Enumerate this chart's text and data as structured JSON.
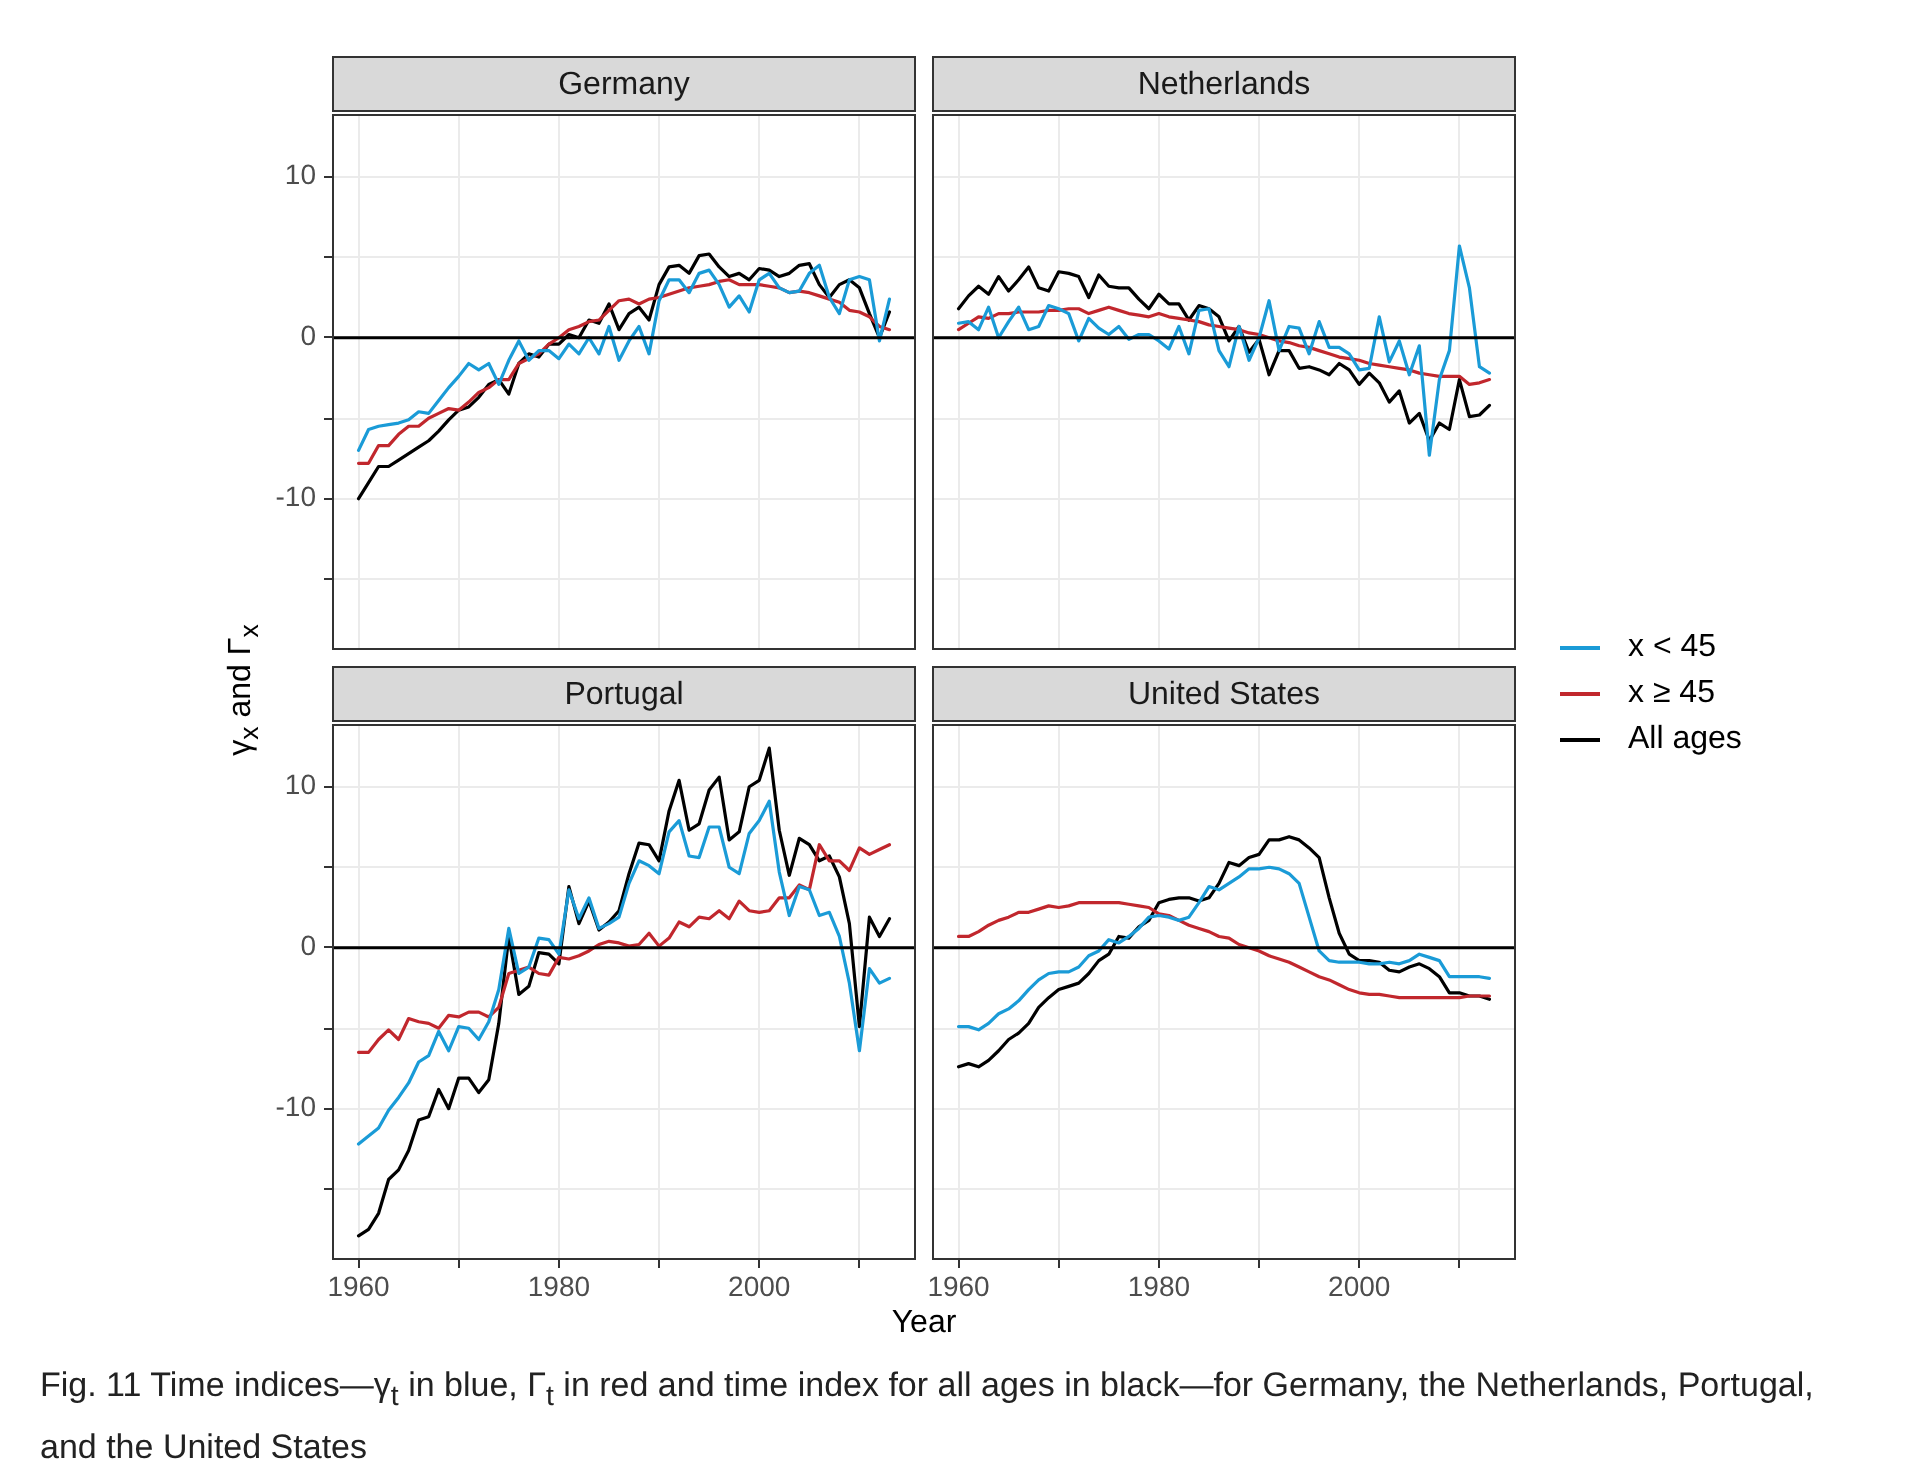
{
  "chart_data": [
    {
      "type": "line",
      "title": "Germany",
      "legend": "right",
      "ylabel": "γ$_{x}$ and Γ$_{x}$",
      "xlabel": "Year",
      "annotations": [
        "Fig. 11  Time indices—γ$_{t}$ in blue, Γ$_{t}$ in red and time index for all ages in black—for Germany, the Netherlands, Portugal, and the United States"
      ],
      "tick_labels": "y",
      "grid": true,
      "marker": "none",
      "xlim": [
        1957.35,
        2015.65
      ],
      "ylim": [
        -19.4,
        13.9
      ],
      "xticks": [
        1960,
        {
          "value": 1970,
          "label": null
        },
        1980,
        {
          "value": 1990,
          "label": null
        },
        2000,
        {
          "value": 2010,
          "label": null
        }
      ],
      "yticks": [
        {
          "value": -15,
          "label": null
        },
        -10,
        {
          "value": -5,
          "label": null
        },
        0,
        {
          "value": 5,
          "label": null
        },
        10
      ],
      "ref_lines": [
        {
          "axis": "y",
          "value": 0
        }
      ],
      "x": [
        1960,
        1961,
        1962,
        1963,
        1964,
        1965,
        1966,
        1967,
        1968,
        1969,
        1970,
        1971,
        1972,
        1973,
        1974,
        1975,
        1976,
        1977,
        1978,
        1979,
        1980,
        1981,
        1982,
        1983,
        1984,
        1985,
        1986,
        1987,
        1988,
        1989,
        1990,
        1991,
        1992,
        1993,
        1994,
        1995,
        1996,
        1997,
        1998,
        1999,
        2000,
        2001,
        2002,
        2003,
        2004,
        2005,
        2006,
        2007,
        2008,
        2009,
        2010,
        2011,
        2012,
        2013
      ],
      "series": [
        {
          "name": "x < 45",
          "color": "#1a9bd7",
          "values": [
            -7.0,
            -5.7,
            -5.5,
            -5.4,
            -5.3,
            -5.1,
            -4.6,
            -4.7,
            -3.9,
            -3.1,
            -2.4,
            -1.6,
            -2.0,
            -1.6,
            -2.9,
            -1.4,
            -0.2,
            -1.4,
            -0.8,
            -0.8,
            -1.3,
            -0.4,
            -1.0,
            0,
            -1.0,
            0.7,
            -1.4,
            -0.2,
            0.7,
            -1.0,
            2.3,
            3.6,
            3.6,
            2.8,
            4.0,
            4.2,
            3.3,
            1.9,
            2.6,
            1.6,
            3.6,
            4.0,
            3.1,
            2.8,
            2.9,
            4.0,
            4.5,
            2.5,
            1.5,
            3.6,
            3.8,
            3.6,
            -0.2,
            2.4
          ]
        },
        {
          "name": "x ≥ 45",
          "color": "#c1272d",
          "values": [
            -7.8,
            -7.8,
            -6.7,
            -6.7,
            -6.0,
            -5.5,
            -5.5,
            -5.0,
            -4.7,
            -4.4,
            -4.5,
            -4.0,
            -3.4,
            -3.1,
            -2.6,
            -2.6,
            -1.6,
            -1.3,
            -1.0,
            -0.4,
            0,
            0.5,
            0.7,
            1.0,
            1.1,
            1.7,
            2.3,
            2.4,
            2.1,
            2.4,
            2.5,
            2.7,
            2.9,
            3.1,
            3.2,
            3.3,
            3.5,
            3.6,
            3.3,
            3.3,
            3.3,
            3.2,
            3.1,
            2.8,
            2.9,
            2.8,
            2.6,
            2.4,
            2.2,
            1.7,
            1.6,
            1.3,
            0.7,
            0.5
          ]
        },
        {
          "name": "All ages",
          "color": "#000000",
          "values": [
            -10,
            -9.0,
            -8.0,
            -8.0,
            -7.6,
            -7.2,
            -6.8,
            -6.4,
            -5.8,
            -5.1,
            -4.5,
            -4.3,
            -3.7,
            -2.9,
            -2.6,
            -3.5,
            -1.6,
            -1.0,
            -1.2,
            -0.4,
            -0.4,
            0.2,
            0,
            1.1,
            0.9,
            2.1,
            0.5,
            1.5,
            1.9,
            1.1,
            3.3,
            4.4,
            4.5,
            4.0,
            5.1,
            5.2,
            4.4,
            3.8,
            4.0,
            3.6,
            4.3,
            4.2,
            3.8,
            4.0,
            4.5,
            4.6,
            3.3,
            2.5,
            3.3,
            3.6,
            3.1,
            1.5,
            0,
            1.6
          ]
        }
      ]
    },
    {
      "type": "line",
      "title": "Netherlands",
      "tick_labels": false,
      "grid": true,
      "marker": "none",
      "xlim": [
        1957.35,
        2015.65
      ],
      "ylim": [
        -19.4,
        13.9
      ],
      "xticks": [
        1960,
        {
          "value": 1970,
          "label": null
        },
        1980,
        {
          "value": 1990,
          "label": null
        },
        2000,
        {
          "value": 2010,
          "label": null
        }
      ],
      "yticks": [
        {
          "value": -15,
          "label": null
        },
        -10,
        {
          "value": -5,
          "label": null
        },
        0,
        {
          "value": 5,
          "label": null
        },
        10
      ],
      "ref_lines": [
        {
          "axis": "y",
          "value": 0
        }
      ],
      "x": [
        1960,
        1961,
        1962,
        1963,
        1964,
        1965,
        1966,
        1967,
        1968,
        1969,
        1970,
        1971,
        1972,
        1973,
        1974,
        1975,
        1976,
        1977,
        1978,
        1979,
        1980,
        1981,
        1982,
        1983,
        1984,
        1985,
        1986,
        1987,
        1988,
        1989,
        1990,
        1991,
        1992,
        1993,
        1994,
        1995,
        1996,
        1997,
        1998,
        1999,
        2000,
        2001,
        2002,
        2003,
        2004,
        2005,
        2006,
        2007,
        2008,
        2009,
        2010,
        2011,
        2012,
        2013
      ],
      "series": [
        {
          "color": "#1a9bd7",
          "values": [
            0.9,
            1.0,
            0.5,
            1.9,
            0,
            1.0,
            1.9,
            0.5,
            0.7,
            2.0,
            1.8,
            1.5,
            -0.2,
            1.2,
            0.6,
            0.2,
            0.7,
            -0.1,
            0.2,
            0.2,
            -0.2,
            -0.7,
            0.7,
            -1.0,
            1.7,
            1.8,
            -0.8,
            -1.8,
            0.7,
            -1.4,
            0,
            2.3,
            -0.8,
            0.7,
            0.6,
            -1.0,
            1.0,
            -0.6,
            -0.6,
            -1.0,
            -2.0,
            -1.9,
            1.3,
            -1.5,
            -0.2,
            -2.3,
            -0.5,
            -7.3,
            -2.6,
            -0.8,
            5.7,
            3.1,
            -1.8,
            -2.2
          ]
        },
        {
          "color": "#c1272d",
          "values": [
            0.5,
            0.9,
            1.3,
            1.2,
            1.5,
            1.5,
            1.6,
            1.6,
            1.6,
            1.7,
            1.7,
            1.8,
            1.8,
            1.5,
            1.7,
            1.9,
            1.7,
            1.5,
            1.4,
            1.3,
            1.5,
            1.3,
            1.2,
            1.1,
            1.0,
            0.8,
            0.7,
            0.6,
            0.5,
            0.3,
            0.2,
            0,
            -0.2,
            -0.3,
            -0.5,
            -0.6,
            -0.8,
            -1.0,
            -1.2,
            -1.3,
            -1.4,
            -1.6,
            -1.7,
            -1.8,
            -1.9,
            -2.0,
            -2.2,
            -2.3,
            -2.4,
            -2.4,
            -2.4,
            -2.9,
            -2.8,
            -2.6
          ]
        },
        {
          "color": "#000000",
          "values": [
            1.8,
            2.6,
            3.2,
            2.7,
            3.8,
            2.9,
            3.6,
            4.4,
            3.1,
            2.9,
            4.1,
            4.0,
            3.8,
            2.5,
            3.9,
            3.2,
            3.1,
            3.1,
            2.4,
            1.8,
            2.7,
            2.1,
            2.1,
            1.1,
            2.0,
            1.8,
            1.3,
            -0.2,
            0.7,
            -0.9,
            -0.1,
            -2.3,
            -0.8,
            -0.8,
            -1.9,
            -1.8,
            -2.0,
            -2.3,
            -1.6,
            -2.0,
            -2.9,
            -2.2,
            -2.8,
            -4.0,
            -3.3,
            -5.3,
            -4.7,
            -6.4,
            -5.3,
            -5.7,
            -2.6,
            -4.9,
            -4.8,
            -4.2
          ]
        }
      ]
    },
    {
      "type": "line",
      "title": "Portugal",
      "grid": true,
      "marker": "none",
      "xlim": [
        1957.35,
        2015.65
      ],
      "ylim": [
        -19.4,
        13.9
      ],
      "xticks": [
        1960,
        {
          "value": 1970,
          "label": null
        },
        1980,
        {
          "value": 1990,
          "label": null
        },
        2000,
        {
          "value": 2010,
          "label": null
        }
      ],
      "yticks": [
        {
          "value": -15,
          "label": null
        },
        -10,
        {
          "value": -5,
          "label": null
        },
        0,
        {
          "value": 5,
          "label": null
        },
        10
      ],
      "ref_lines": [
        {
          "axis": "y",
          "value": 0
        }
      ],
      "x": [
        1960,
        1961,
        1962,
        1963,
        1964,
        1965,
        1966,
        1967,
        1968,
        1969,
        1970,
        1971,
        1972,
        1973,
        1974,
        1975,
        1976,
        1977,
        1978,
        1979,
        1980,
        1981,
        1982,
        1983,
        1984,
        1985,
        1986,
        1987,
        1988,
        1989,
        1990,
        1991,
        1992,
        1993,
        1994,
        1995,
        1996,
        1997,
        1998,
        1999,
        2000,
        2001,
        2002,
        2003,
        2004,
        2005,
        2006,
        2007,
        2008,
        2009,
        2010,
        2011,
        2012,
        2013
      ],
      "series": [
        {
          "color": "#1a9bd7",
          "values": [
            -12.2,
            -11.7,
            -11.2,
            -10.1,
            -9.3,
            -8.4,
            -7.1,
            -6.7,
            -5.2,
            -6.4,
            -4.9,
            -5.0,
            -5.7,
            -4.6,
            -2.6,
            1.2,
            -1.6,
            -1.2,
            0.6,
            0.5,
            -0.4,
            3.6,
            1.8,
            3.1,
            1.2,
            1.5,
            1.9,
            4.0,
            5.4,
            5.1,
            4.6,
            7.2,
            7.9,
            5.7,
            5.6,
            7.5,
            7.5,
            5.0,
            4.6,
            7.1,
            7.9,
            9.1,
            4.7,
            2.0,
            3.8,
            3.6,
            2.0,
            2.2,
            0.7,
            -2.2,
            -6.4,
            -1.3,
            -2.2,
            -1.9
          ]
        },
        {
          "color": "#c1272d",
          "values": [
            -6.5,
            -6.5,
            -5.7,
            -5.1,
            -5.7,
            -4.4,
            -4.6,
            -4.7,
            -5.0,
            -4.2,
            -4.3,
            -4.0,
            -4.0,
            -4.3,
            -3.7,
            -1.6,
            -1.4,
            -1.2,
            -1.6,
            -1.7,
            -0.6,
            -0.7,
            -0.5,
            -0.2,
            0.2,
            0.4,
            0.3,
            0.1,
            0.2,
            0.9,
            0.1,
            0.6,
            1.6,
            1.3,
            1.9,
            1.8,
            2.3,
            1.8,
            2.9,
            2.3,
            2.2,
            2.3,
            3.1,
            3.1,
            3.9,
            3.6,
            6.4,
            5.4,
            5.4,
            4.8,
            6.2,
            5.8,
            6.1,
            6.4
          ]
        },
        {
          "color": "#000000",
          "values": [
            -17.9,
            -17.5,
            -16.5,
            -14.4,
            -13.8,
            -12.6,
            -10.7,
            -10.5,
            -8.8,
            -10.0,
            -8.1,
            -8.1,
            -9.0,
            -8.2,
            -4.7,
            0.7,
            -2.9,
            -2.4,
            -0.3,
            -0.4,
            -1.0,
            3.8,
            1.5,
            2.9,
            1.1,
            1.6,
            2.3,
            4.6,
            6.5,
            6.4,
            5.4,
            8.5,
            10.4,
            7.3,
            7.7,
            9.8,
            10.6,
            6.7,
            7.2,
            10.0,
            10.4,
            12.4,
            7.3,
            4.5,
            6.8,
            6.4,
            5.4,
            5.7,
            4.4,
            1.5,
            -4.9,
            1.9,
            0.7,
            1.8
          ]
        }
      ]
    },
    {
      "type": "line",
      "title": "United States",
      "tick_labels": "x",
      "grid": true,
      "marker": "none",
      "xlim": [
        1957.35,
        2015.65
      ],
      "ylim": [
        -19.4,
        13.9
      ],
      "xticks": [
        1960,
        {
          "value": 1970,
          "label": null
        },
        1980,
        {
          "value": 1990,
          "label": null
        },
        2000,
        {
          "value": 2010,
          "label": null
        }
      ],
      "yticks": [
        {
          "value": -15,
          "label": null
        },
        -10,
        {
          "value": -5,
          "label": null
        },
        0,
        {
          "value": 5,
          "label": null
        },
        10
      ],
      "ref_lines": [
        {
          "axis": "y",
          "value": 0
        }
      ],
      "x": [
        1960,
        1961,
        1962,
        1963,
        1964,
        1965,
        1966,
        1967,
        1968,
        1969,
        1970,
        1971,
        1972,
        1973,
        1974,
        1975,
        1976,
        1977,
        1978,
        1979,
        1980,
        1981,
        1982,
        1983,
        1984,
        1985,
        1986,
        1987,
        1988,
        1989,
        1990,
        1991,
        1992,
        1993,
        1994,
        1995,
        1996,
        1997,
        1998,
        1999,
        2000,
        2001,
        2002,
        2003,
        2004,
        2005,
        2006,
        2007,
        2008,
        2009,
        2010,
        2011,
        2012,
        2013
      ],
      "series": [
        {
          "color": "#1a9bd7",
          "values": [
            -4.9,
            -4.9,
            -5.1,
            -4.7,
            -4.1,
            -3.8,
            -3.3,
            -2.6,
            -2.0,
            -1.6,
            -1.5,
            -1.5,
            -1.2,
            -0.5,
            -0.2,
            0.5,
            0.3,
            0.7,
            1.2,
            1.9,
            2.0,
            1.9,
            1.7,
            1.9,
            2.8,
            3.8,
            3.6,
            4.0,
            4.4,
            4.9,
            4.9,
            5.0,
            4.9,
            4.6,
            4.0,
            1.9,
            -0.2,
            -0.8,
            -0.9,
            -0.9,
            -0.9,
            -1.0,
            -1.0,
            -0.9,
            -1.0,
            -0.8,
            -0.4,
            -0.6,
            -0.8,
            -1.8,
            -1.8,
            -1.8,
            -1.8,
            -1.9
          ]
        },
        {
          "color": "#c1272d",
          "values": [
            0.7,
            0.7,
            1.0,
            1.4,
            1.7,
            1.9,
            2.2,
            2.2,
            2.4,
            2.6,
            2.5,
            2.6,
            2.8,
            2.8,
            2.8,
            2.8,
            2.8,
            2.7,
            2.6,
            2.5,
            2.1,
            2.0,
            1.7,
            1.4,
            1.2,
            1.0,
            0.7,
            0.6,
            0.2,
            0,
            -0.2,
            -0.5,
            -0.7,
            -0.9,
            -1.2,
            -1.5,
            -1.8,
            -2.0,
            -2.3,
            -2.6,
            -2.8,
            -2.9,
            -2.9,
            -3.0,
            -3.1,
            -3.1,
            -3.1,
            -3.1,
            -3.1,
            -3.1,
            -3.1,
            -3.0,
            -3.0,
            -3.0
          ]
        },
        {
          "color": "#000000",
          "values": [
            -7.4,
            -7.2,
            -7.4,
            -7.0,
            -6.4,
            -5.7,
            -5.3,
            -4.7,
            -3.7,
            -3.1,
            -2.6,
            -2.4,
            -2.2,
            -1.6,
            -0.8,
            -0.4,
            0.7,
            0.6,
            1.3,
            1.7,
            2.8,
            3.0,
            3.1,
            3.1,
            2.9,
            3.1,
            4.0,
            5.3,
            5.1,
            5.6,
            5.8,
            6.7,
            6.7,
            6.9,
            6.7,
            6.2,
            5.6,
            3.1,
            0.9,
            -0.4,
            -0.8,
            -0.8,
            -0.9,
            -1.4,
            -1.5,
            -1.2,
            -1.0,
            -1.3,
            -1.8,
            -2.8,
            -2.8,
            -3.0,
            -3.0,
            -3.2
          ]
        }
      ]
    }
  ]
}
